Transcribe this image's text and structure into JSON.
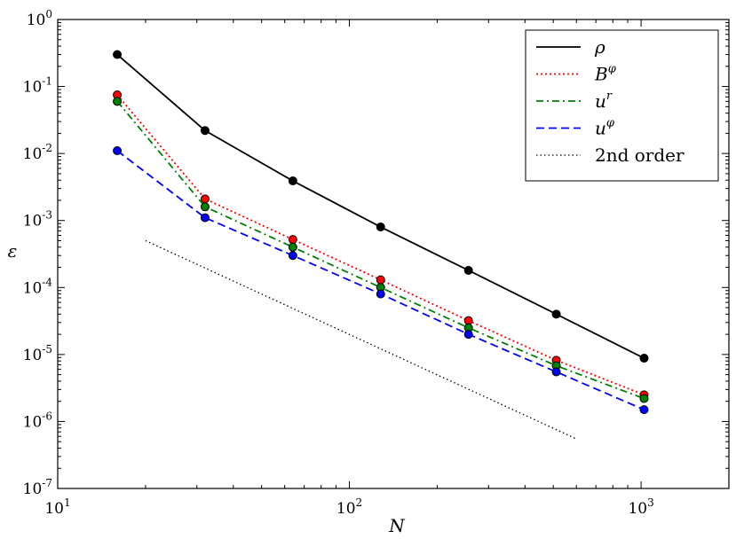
{
  "chart_data": {
    "type": "line",
    "xscale": "log",
    "yscale": "log",
    "xlabel": "N",
    "ylabel": "ε",
    "xlim": [
      10,
      2000
    ],
    "ylim": [
      1e-07,
      1
    ],
    "grid": false,
    "legend_position": "top-right",
    "x_major_ticks": [
      {
        "value": 10,
        "base": "10",
        "exp": "1"
      },
      {
        "value": 100,
        "base": "10",
        "exp": "2"
      },
      {
        "value": 1000,
        "base": "10",
        "exp": "3"
      }
    ],
    "y_major_ticks": [
      {
        "value": 1,
        "base": "10",
        "exp": "0"
      },
      {
        "value": 0.1,
        "base": "10",
        "exp": "-1"
      },
      {
        "value": 0.01,
        "base": "10",
        "exp": "-2"
      },
      {
        "value": 0.001,
        "base": "10",
        "exp": "-3"
      },
      {
        "value": 0.0001,
        "base": "10",
        "exp": "-4"
      },
      {
        "value": 1e-05,
        "base": "10",
        "exp": "-5"
      },
      {
        "value": 1e-06,
        "base": "10",
        "exp": "-6"
      },
      {
        "value": 1e-07,
        "base": "10",
        "exp": "-7"
      }
    ],
    "series": [
      {
        "name": "ρ",
        "sup": "",
        "color": "#000000",
        "dash": "solid",
        "marker_color": "#000000",
        "x": [
          16,
          32,
          64,
          128,
          256,
          512,
          1024
        ],
        "y": [
          0.3,
          0.022,
          0.0039,
          0.0008,
          0.00018,
          4e-05,
          8.8e-06
        ]
      },
      {
        "name": "B",
        "sup": "φ",
        "color": "#ff0000",
        "dash": "dotted",
        "marker_color": "#ff0000",
        "x": [
          16,
          32,
          64,
          128,
          256,
          512,
          1024
        ],
        "y": [
          0.075,
          0.0021,
          0.00052,
          0.00013,
          3.2e-05,
          8.2e-06,
          2.5e-06
        ]
      },
      {
        "name": "u",
        "sup": "r",
        "color": "#008000",
        "dash": "dashdot",
        "marker_color": "#008000",
        "x": [
          16,
          32,
          64,
          128,
          256,
          512,
          1024
        ],
        "y": [
          0.06,
          0.0016,
          0.0004,
          0.0001,
          2.5e-05,
          6.8e-06,
          2.2e-06
        ]
      },
      {
        "name": "u",
        "sup": "φ",
        "color": "#0000ff",
        "dash": "dashed",
        "marker_color": "#0000ff",
        "x": [
          16,
          32,
          64,
          128,
          256,
          512,
          1024
        ],
        "y": [
          0.011,
          0.0011,
          0.0003,
          8e-05,
          2e-05,
          5.5e-06,
          1.5e-06
        ]
      },
      {
        "name": "2nd order",
        "sup": "",
        "color": "#000000",
        "dash": "finedot",
        "marker_color": "",
        "x": [
          20,
          600
        ],
        "y": [
          0.0005,
          5.5e-07
        ]
      }
    ]
  }
}
